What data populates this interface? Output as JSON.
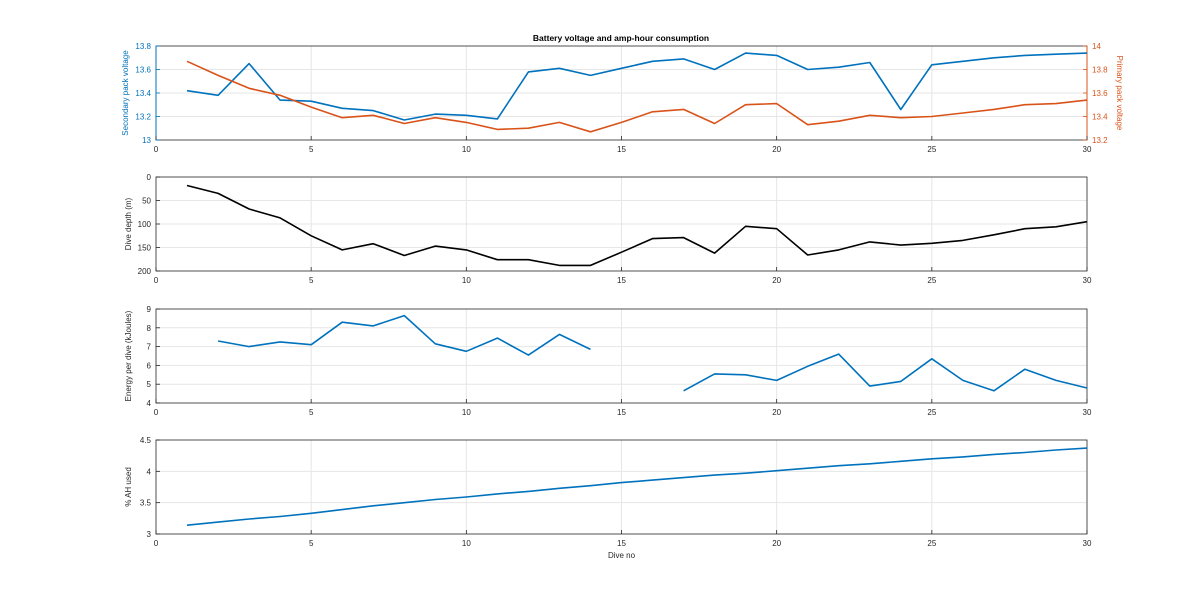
{
  "figure": {
    "title": "Battery voltage and amp-hour consumption"
  },
  "chart_data": [
    {
      "type": "line",
      "title": "Battery voltage and amp-hour consumption",
      "xlabel": "",
      "ylabel": "Secondary pack voltage",
      "y2label": "Primary pack voltage",
      "xlim": [
        0,
        30
      ],
      "ylim": [
        13,
        13.8
      ],
      "y2lim": [
        13.2,
        14
      ],
      "xticks": [
        0,
        5,
        10,
        15,
        20,
        25,
        30
      ],
      "yticks": [
        13,
        13.2,
        13.4,
        13.6,
        13.8
      ],
      "y2ticks": [
        13.2,
        13.4,
        13.6,
        13.8,
        14
      ],
      "grid": true,
      "series": [
        {
          "axis": "left",
          "color": "#0072BD",
          "x": [
            1,
            2,
            3,
            4,
            5,
            6,
            7,
            8,
            9,
            10,
            11,
            12,
            13,
            14,
            15,
            16,
            17,
            18,
            19,
            20,
            21,
            22,
            23,
            24,
            25,
            26,
            27,
            28,
            29,
            30
          ],
          "values": [
            13.42,
            13.38,
            13.65,
            13.34,
            13.33,
            13.27,
            13.25,
            13.17,
            13.22,
            13.21,
            13.18,
            13.58,
            13.61,
            13.55,
            13.61,
            13.67,
            13.69,
            13.6,
            13.74,
            13.72,
            13.6,
            13.62,
            13.66,
            13.26,
            13.64,
            13.67,
            13.7,
            13.72,
            13.73,
            13.74
          ]
        },
        {
          "axis": "right",
          "color": "#D95319",
          "x": [
            1,
            2,
            3,
            4,
            5,
            6,
            7,
            8,
            9,
            10,
            11,
            12,
            13,
            14,
            15,
            16,
            17,
            18,
            19,
            20,
            21,
            22,
            23,
            24,
            25,
            26,
            27,
            28,
            29,
            30
          ],
          "values": [
            13.87,
            13.75,
            13.64,
            13.58,
            13.48,
            13.39,
            13.41,
            13.34,
            13.39,
            13.35,
            13.29,
            13.3,
            13.35,
            13.27,
            13.35,
            13.44,
            13.46,
            13.34,
            13.5,
            13.51,
            13.33,
            13.36,
            13.41,
            13.39,
            13.4,
            13.43,
            13.46,
            13.5,
            13.51,
            13.54
          ]
        }
      ]
    },
    {
      "type": "line",
      "xlabel": "",
      "ylabel": "Dive depth (m)",
      "xlim": [
        0,
        30
      ],
      "ylim": [
        0,
        200
      ],
      "y_reversed": true,
      "xticks": [
        0,
        5,
        10,
        15,
        20,
        25,
        30
      ],
      "yticks": [
        0,
        50,
        100,
        150,
        200
      ],
      "grid": true,
      "series": [
        {
          "color": "#000000",
          "x": [
            1,
            2,
            3,
            4,
            5,
            6,
            7,
            8,
            9,
            10,
            11,
            12,
            13,
            14,
            15,
            16,
            17,
            18,
            19,
            20,
            21,
            22,
            23,
            24,
            25,
            26,
            27,
            28,
            29,
            30
          ],
          "values": [
            18,
            35,
            68,
            87,
            125,
            155,
            142,
            167,
            147,
            155,
            176,
            176,
            188,
            188,
            160,
            131,
            129,
            162,
            105,
            110,
            166,
            155,
            138,
            145,
            141,
            135,
            123,
            110,
            106,
            95
          ]
        }
      ]
    },
    {
      "type": "line",
      "xlabel": "",
      "ylabel": "Energy per dive (kJoules)",
      "xlim": [
        0,
        30
      ],
      "ylim": [
        4,
        9
      ],
      "xticks": [
        0,
        5,
        10,
        15,
        20,
        25,
        30
      ],
      "yticks": [
        4,
        5,
        6,
        7,
        8,
        9
      ],
      "grid": true,
      "series": [
        {
          "color": "#0072BD",
          "x": [
            2,
            3,
            4,
            5,
            6,
            7,
            8,
            9,
            10,
            11,
            12,
            13,
            14
          ],
          "values": [
            7.3,
            7.0,
            7.25,
            7.1,
            8.3,
            8.1,
            8.65,
            7.15,
            6.75,
            7.45,
            6.55,
            7.65,
            6.85
          ]
        },
        {
          "color": "#0072BD",
          "x": [
            17,
            18,
            19,
            20,
            21,
            22,
            23,
            24,
            25,
            26,
            27,
            28,
            29,
            30
          ],
          "values": [
            4.65,
            5.55,
            5.5,
            5.2,
            5.95,
            6.6,
            4.9,
            5.15,
            6.35,
            5.2,
            4.65,
            5.8,
            5.2,
            4.8
          ]
        }
      ]
    },
    {
      "type": "line",
      "xlabel": "Dive no",
      "ylabel": "% AH used",
      "xlim": [
        0,
        30
      ],
      "ylim": [
        3,
        4.5
      ],
      "xticks": [
        0,
        5,
        10,
        15,
        20,
        25,
        30
      ],
      "yticks": [
        3,
        3.5,
        4,
        4.5
      ],
      "grid": true,
      "series": [
        {
          "color": "#0072BD",
          "x": [
            1,
            2,
            3,
            4,
            5,
            6,
            7,
            8,
            9,
            10,
            11,
            12,
            13,
            14,
            15,
            16,
            17,
            18,
            19,
            20,
            21,
            22,
            23,
            24,
            25,
            26,
            27,
            28,
            29,
            30
          ],
          "values": [
            3.14,
            3.19,
            3.24,
            3.28,
            3.33,
            3.39,
            3.45,
            3.5,
            3.55,
            3.59,
            3.64,
            3.68,
            3.73,
            3.77,
            3.82,
            3.86,
            3.9,
            3.94,
            3.97,
            4.01,
            4.05,
            4.09,
            4.12,
            4.16,
            4.2,
            4.23,
            4.27,
            4.3,
            4.34,
            4.37
          ]
        }
      ]
    }
  ]
}
